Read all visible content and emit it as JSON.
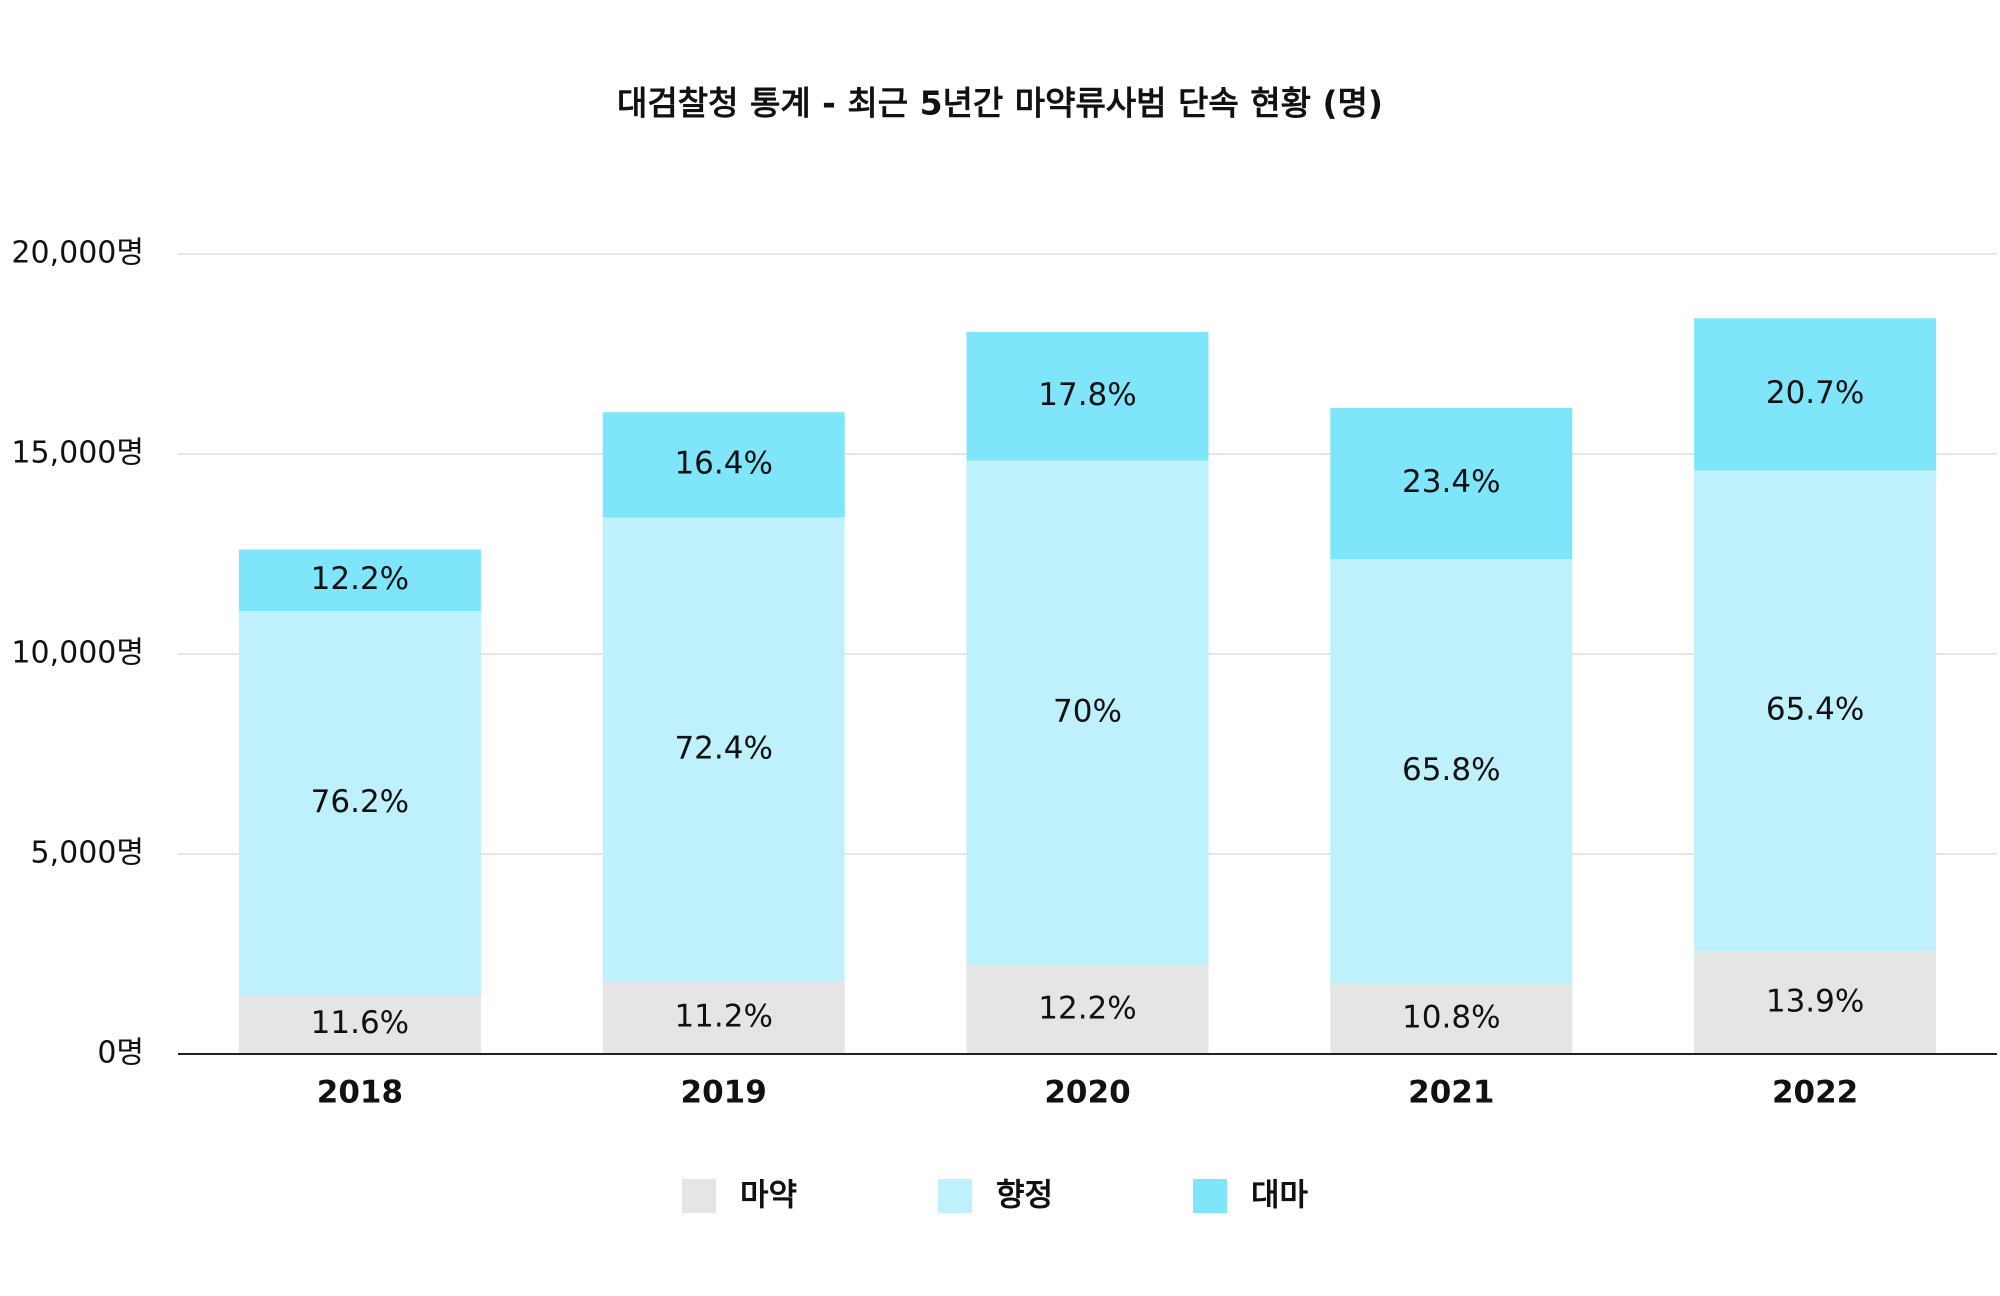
{
  "chart_data": {
    "type": "stacked_bar",
    "title": "대검찰청 통계 - 최근 5년간 마약류사범 단속 현황 (명)",
    "categories": [
      "2018",
      "2019",
      "2020",
      "2021",
      "2022"
    ],
    "series": [
      {
        "name": "마약",
        "color": "#e5e5e5",
        "values": [
          1463,
          1797,
          2202,
          1745,
          2557
        ],
        "value_labels": [
          "11.6%",
          "11.2%",
          "12.2%",
          "10.8%",
          "13.9%"
        ]
      },
      {
        "name": "향정",
        "color": "#bff1fc",
        "values": [
          9611,
          11616,
          12635,
          10629,
          12030
        ],
        "value_labels": [
          "76.2%",
          "72.4%",
          "70%",
          "65.8%",
          "65.4%"
        ]
      },
      {
        "name": "대마",
        "color": "#7ee5fb",
        "values": [
          1539,
          2631,
          3213,
          3779,
          3808
        ],
        "value_labels": [
          "12.2%",
          "16.4%",
          "17.8%",
          "23.4%",
          "20.7%"
        ]
      }
    ],
    "ylim": [
      0,
      20000
    ],
    "yticks": [
      {
        "value": 0,
        "label": "0명"
      },
      {
        "value": 5000,
        "label": "5,000명"
      },
      {
        "value": 10000,
        "label": "10,000명"
      },
      {
        "value": 15000,
        "label": "15,000명"
      },
      {
        "value": 20000,
        "label": "20,000명"
      }
    ],
    "grid": true
  }
}
